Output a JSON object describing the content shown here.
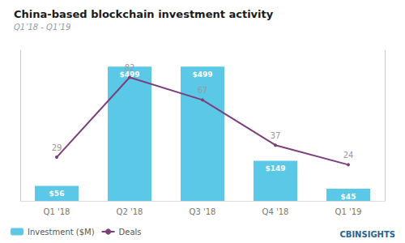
{
  "chart_data": {
    "type": "bar",
    "title": "China-based blockchain investment activity",
    "subtitle": "Q1’18 - Q1’19",
    "categories": [
      "Q1 '18",
      "Q2 '18",
      "Q3 '18",
      "Q4 '18",
      "Q1 '19"
    ],
    "series": [
      {
        "name": "Investment ($M)",
        "type": "bar",
        "color": "#5BC8E8",
        "values": [
          56,
          499,
          499,
          149,
          45
        ],
        "value_labels": [
          "$56",
          "$499",
          "$499",
          "$149",
          "$45"
        ]
      },
      {
        "name": "Deals",
        "type": "line",
        "color": "#7B3F7B",
        "axis": "y2",
        "values": [
          29,
          82,
          67,
          37,
          24
        ]
      }
    ],
    "ylim": [
      0,
      560
    ],
    "y2lim": [
      0,
      100
    ],
    "tick_labels": "x",
    "grid": false,
    "legend": "lower left",
    "data_labels": true,
    "annotations": [
      "CBINSIGHTS"
    ]
  }
}
